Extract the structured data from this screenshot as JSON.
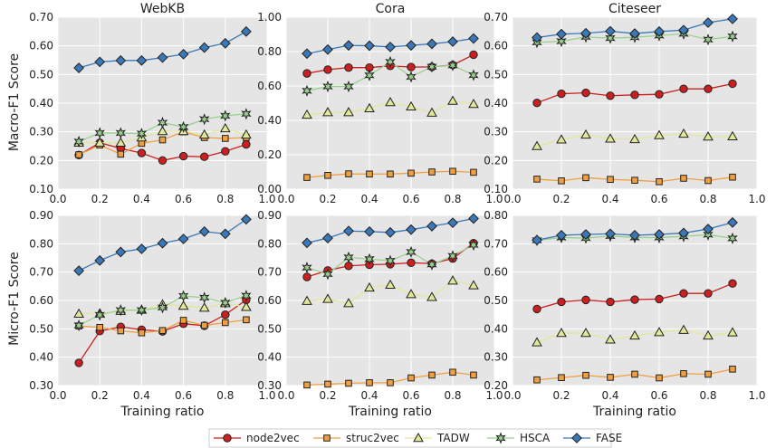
{
  "chart_data": {
    "type": "line",
    "x": [
      0.1,
      0.2,
      0.3,
      0.4,
      0.5,
      0.6,
      0.7,
      0.8,
      0.9
    ],
    "x_ticks": [
      "0.0",
      "0.2",
      "0.4",
      "0.6",
      "0.8",
      "1.0"
    ],
    "xlim": [
      0.0,
      1.0
    ],
    "xlabel": "Training ratio",
    "row_labels": [
      "Macro-F1 Score",
      "Micro-F1 Score"
    ],
    "series_names": [
      "node2vec",
      "struc2vec",
      "TADW",
      "HSCA",
      "FASE"
    ],
    "colors": {
      "node2vec": "#cc1f1f",
      "struc2vec": "#f0a040",
      "TADW": "#e2e89a",
      "HSCA": "#9ad08e",
      "FASE": "#3a78b8",
      "panel_bg": "#e5e5e5"
    },
    "legend": [
      "node2vec",
      "struc2vec",
      "TADW",
      "HSCA",
      "FASE"
    ],
    "panels": [
      {
        "title": "WebKB",
        "metric": "Macro-F1",
        "ylim": [
          0.1,
          0.7
        ],
        "y_ticks": [
          "0.10",
          "0.20",
          "0.30",
          "0.40",
          "0.50",
          "0.60",
          "0.70"
        ],
        "series": [
          {
            "name": "node2vec",
            "values": [
              0.219,
              0.262,
              0.242,
              0.226,
              0.2,
              0.215,
              0.213,
              0.232,
              0.256
            ]
          },
          {
            "name": "struc2vec",
            "values": [
              0.22,
              0.254,
              0.222,
              0.26,
              0.272,
              0.3,
              0.28,
              0.277,
              0.28
            ]
          },
          {
            "name": "TADW",
            "values": [
              0.262,
              0.262,
              0.262,
              0.28,
              0.302,
              0.302,
              0.29,
              0.312,
              0.29
            ]
          },
          {
            "name": "HSCA",
            "values": [
              0.266,
              0.296,
              0.296,
              0.294,
              0.332,
              0.317,
              0.344,
              0.356,
              0.363
            ]
          },
          {
            "name": "FASE",
            "values": [
              0.523,
              0.544,
              0.549,
              0.549,
              0.559,
              0.571,
              0.594,
              0.609,
              0.65
            ]
          }
        ]
      },
      {
        "title": "Cora",
        "metric": "Macro-F1",
        "ylim": [
          0.0,
          1.0
        ],
        "y_ticks": [
          "0.00",
          "0.20",
          "0.40",
          "0.60",
          "0.80",
          "1.00"
        ],
        "series": [
          {
            "name": "node2vec",
            "values": [
              0.673,
              0.695,
              0.707,
              0.707,
              0.717,
              0.71,
              0.711,
              0.722,
              0.782
            ]
          },
          {
            "name": "struc2vec",
            "values": [
              0.068,
              0.08,
              0.089,
              0.088,
              0.088,
              0.093,
              0.1,
              0.104,
              0.098
            ]
          },
          {
            "name": "TADW",
            "values": [
              0.432,
              0.447,
              0.447,
              0.47,
              0.505,
              0.48,
              0.444,
              0.513,
              0.495
            ]
          },
          {
            "name": "HSCA",
            "values": [
              0.572,
              0.597,
              0.597,
              0.662,
              0.74,
              0.653,
              0.712,
              0.72,
              0.663
            ]
          },
          {
            "name": "FASE",
            "values": [
              0.788,
              0.812,
              0.836,
              0.834,
              0.827,
              0.836,
              0.845,
              0.858,
              0.876
            ]
          }
        ]
      },
      {
        "title": "Citeseer",
        "metric": "Macro-F1",
        "ylim": [
          0.1,
          0.7
        ],
        "y_ticks": [
          "0.10",
          "0.20",
          "0.30",
          "0.40",
          "0.50",
          "0.60",
          "0.70"
        ],
        "series": [
          {
            "name": "node2vec",
            "values": [
              0.401,
              0.433,
              0.436,
              0.426,
              0.429,
              0.431,
              0.45,
              0.45,
              0.468
            ]
          },
          {
            "name": "struc2vec",
            "values": [
              0.135,
              0.129,
              0.14,
              0.134,
              0.131,
              0.126,
              0.138,
              0.13,
              0.142
            ]
          },
          {
            "name": "TADW",
            "values": [
              0.25,
              0.273,
              0.29,
              0.276,
              0.274,
              0.288,
              0.293,
              0.283,
              0.284
            ]
          },
          {
            "name": "HSCA",
            "values": [
              0.612,
              0.616,
              0.631,
              0.627,
              0.63,
              0.636,
              0.642,
              0.622,
              0.633
            ]
          },
          {
            "name": "FASE",
            "values": [
              0.629,
              0.641,
              0.644,
              0.651,
              0.643,
              0.65,
              0.655,
              0.681,
              0.694
            ]
          }
        ]
      },
      {
        "title": "",
        "metric": "Micro-F1",
        "ylim": [
          0.3,
          0.9
        ],
        "y_ticks": [
          "0.30",
          "0.40",
          "0.50",
          "0.60",
          "0.70",
          "0.80",
          "0.90"
        ],
        "series": [
          {
            "name": "node2vec",
            "values": [
              0.38,
              0.492,
              0.507,
              0.497,
              0.491,
              0.518,
              0.511,
              0.55,
              0.602
            ]
          },
          {
            "name": "struc2vec",
            "values": [
              0.51,
              0.505,
              0.493,
              0.486,
              0.494,
              0.53,
              0.512,
              0.522,
              0.532
            ]
          },
          {
            "name": "TADW",
            "values": [
              0.553,
              0.554,
              0.563,
              0.567,
              0.586,
              0.581,
              0.574,
              0.59,
              0.577
            ]
          },
          {
            "name": "HSCA",
            "values": [
              0.512,
              0.549,
              0.566,
              0.566,
              0.575,
              0.616,
              0.61,
              0.592,
              0.617
            ]
          },
          {
            "name": "FASE",
            "values": [
              0.705,
              0.741,
              0.771,
              0.782,
              0.802,
              0.817,
              0.843,
              0.835,
              0.886
            ]
          }
        ]
      },
      {
        "title": "",
        "metric": "Micro-F1",
        "ylim": [
          0.3,
          0.9
        ],
        "y_ticks": [
          "0.30",
          "0.40",
          "0.50",
          "0.60",
          "0.70",
          "0.80",
          "0.90"
        ],
        "series": [
          {
            "name": "node2vec",
            "values": [
              0.683,
              0.706,
              0.722,
              0.726,
              0.728,
              0.733,
              0.73,
              0.748,
              0.802
            ]
          },
          {
            "name": "struc2vec",
            "values": [
              0.302,
              0.305,
              0.308,
              0.31,
              0.31,
              0.327,
              0.337,
              0.347,
              0.337
            ]
          },
          {
            "name": "TADW",
            "values": [
              0.598,
              0.605,
              0.59,
              0.645,
              0.655,
              0.622,
              0.612,
              0.67,
              0.653
            ]
          },
          {
            "name": "HSCA",
            "values": [
              0.716,
              0.693,
              0.752,
              0.746,
              0.74,
              0.771,
              0.727,
              0.757,
              0.796
            ]
          },
          {
            "name": "FASE",
            "values": [
              0.803,
              0.82,
              0.845,
              0.843,
              0.84,
              0.85,
              0.862,
              0.874,
              0.889
            ]
          }
        ]
      },
      {
        "title": "",
        "metric": "Micro-F1",
        "ylim": [
          0.2,
          0.8
        ],
        "y_ticks": [
          "0.20",
          "0.30",
          "0.40",
          "0.50",
          "0.60",
          "0.70",
          "0.80"
        ],
        "series": [
          {
            "name": "node2vec",
            "values": [
              0.47,
              0.495,
              0.502,
              0.495,
              0.503,
              0.505,
              0.525,
              0.525,
              0.56
            ]
          },
          {
            "name": "struc2vec",
            "values": [
              0.22,
              0.228,
              0.236,
              0.229,
              0.24,
              0.227,
              0.242,
              0.24,
              0.258
            ]
          },
          {
            "name": "TADW",
            "values": [
              0.352,
              0.385,
              0.385,
              0.362,
              0.376,
              0.388,
              0.396,
              0.376,
              0.387
            ]
          },
          {
            "name": "HSCA",
            "values": [
              0.712,
              0.722,
              0.72,
              0.727,
              0.722,
              0.722,
              0.726,
              0.732,
              0.719
            ]
          },
          {
            "name": "FASE",
            "values": [
              0.713,
              0.73,
              0.733,
              0.735,
              0.73,
              0.733,
              0.738,
              0.752,
              0.775
            ]
          }
        ]
      }
    ]
  }
}
